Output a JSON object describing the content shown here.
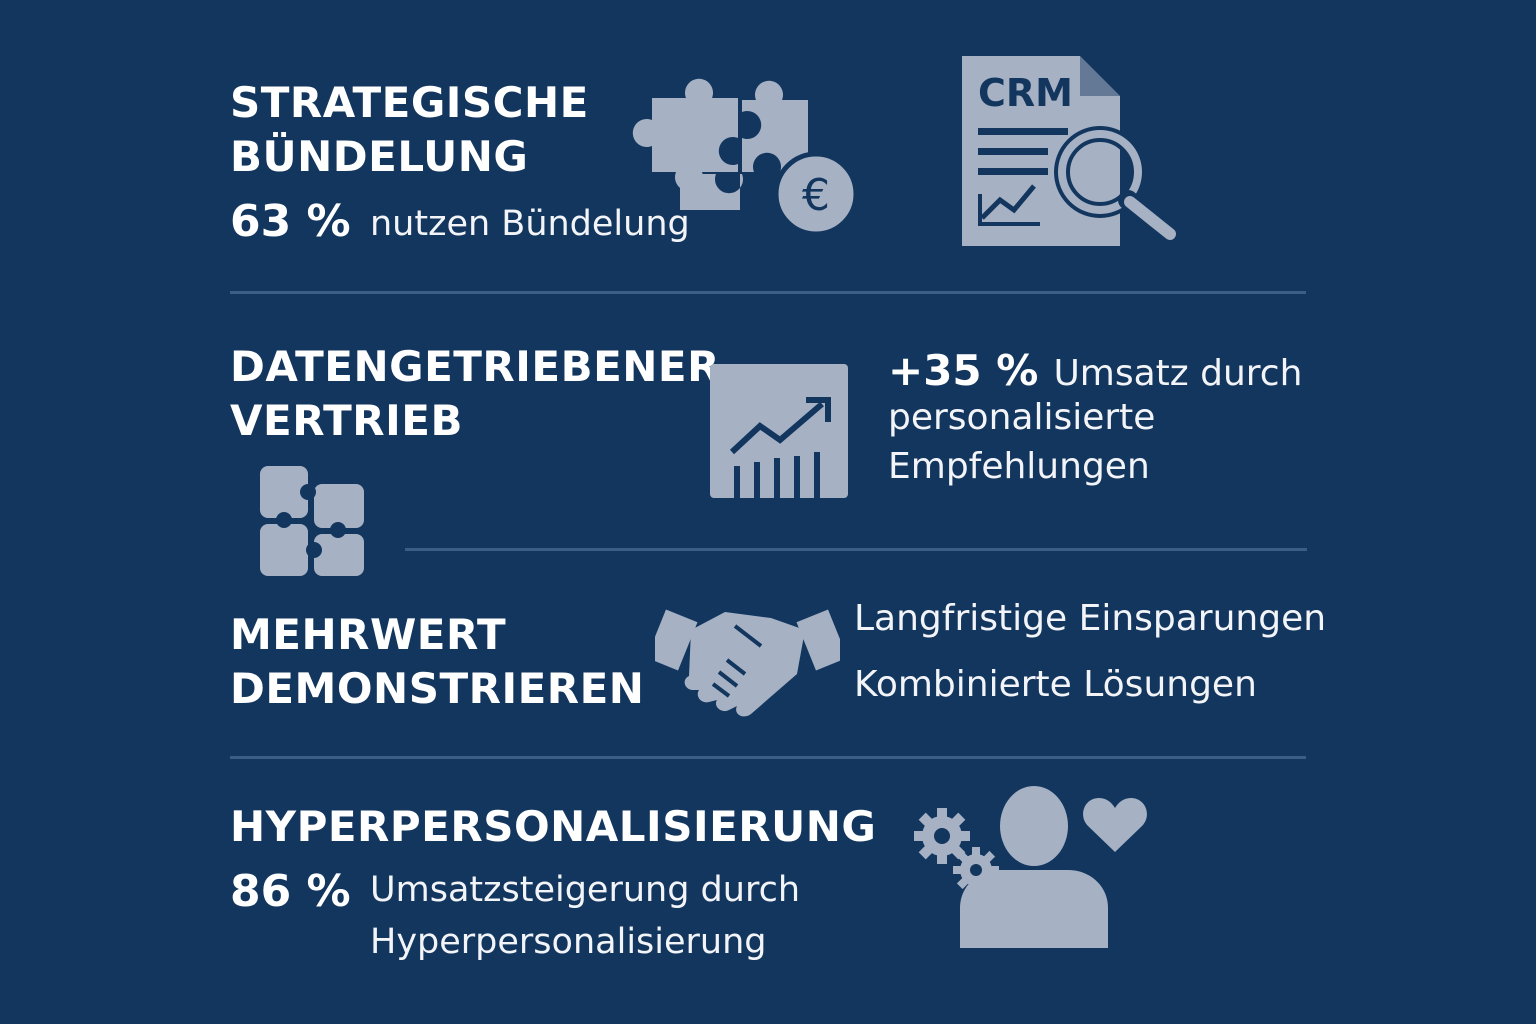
{
  "colors": {
    "background": "#13365e",
    "icon_fill": "#a6b1c4",
    "divider": "#3b5d86",
    "text": "#ffffff"
  },
  "sections": [
    {
      "heading_line1": "STRATEGISCHE",
      "heading_line2": "BÜNDELUNG",
      "stat": "63 %",
      "text": "nutzen Bündelung",
      "icons": [
        "puzzle-icon",
        "euro-coin-icon",
        "crm-document-icon",
        "magnifier-icon"
      ],
      "crm_label": "CRM"
    },
    {
      "heading_line1": "DATENGETRIEBENER",
      "heading_line2": "VERTRIEB",
      "stat": "+35 %",
      "text_line1": "Umsatz durch",
      "text_line2": "personalisierte",
      "text_line3": "Empfehlungen",
      "icons": [
        "puzzle-grid-icon",
        "growth-chart-icon"
      ]
    },
    {
      "heading_line1": "MEHRWERT",
      "heading_line2": "DEMONSTRIEREN",
      "text_line1": "Langfristige Einsparungen",
      "text_line2": "Kombinierte Lösungen",
      "icons": [
        "handshake-icon"
      ]
    },
    {
      "heading": "HYPERPERSONALISIERUNG",
      "stat": "86 %",
      "text_line1": "Umsatzsteigerung durch",
      "text_line2": "Hyperpersonalisierung",
      "icons": [
        "gears-icon",
        "person-icon",
        "heart-icon"
      ]
    }
  ]
}
